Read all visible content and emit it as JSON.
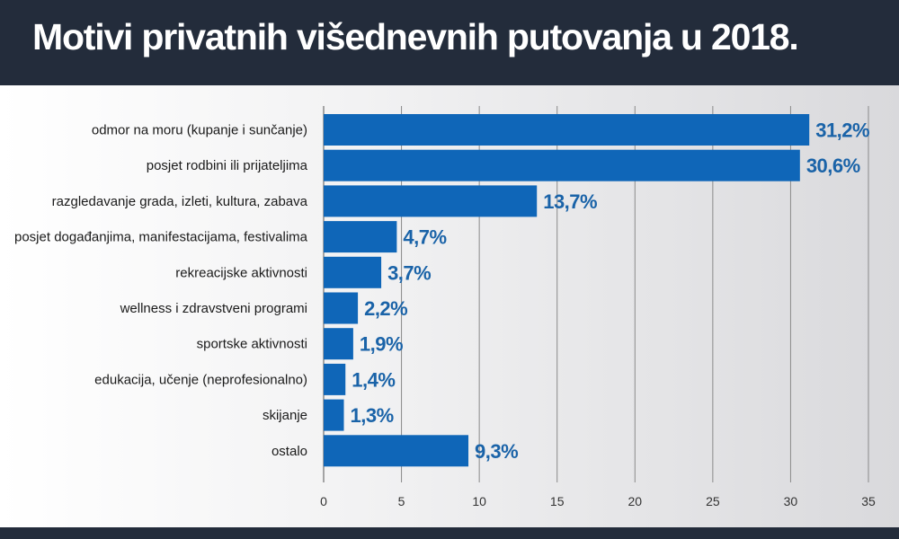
{
  "title": "Motivi privatnih višednevnih putovanja u 2018.",
  "chart_data": {
    "type": "bar",
    "orientation": "horizontal",
    "title": "Motivi privatnih višednevnih putovanja u 2018.",
    "xlabel": "",
    "ylabel": "",
    "xlim": [
      0,
      35
    ],
    "xticks": [
      0,
      5,
      10,
      15,
      20,
      25,
      30,
      35
    ],
    "grid": true,
    "categories": [
      "odmor na moru (kupanje i sunčanje)",
      "posjet rodbini ili prijateljima",
      "razgledavanje grada, izleti, kultura, zabava",
      "posjet događanjima, manifestacijama, festivalima",
      "rekreacijske aktivnosti",
      "wellness i zdravstveni programi",
      "sportske aktivnosti",
      "edukacija, učenje (neprofesionalno)",
      "skijanje",
      "ostalo"
    ],
    "values": [
      31.2,
      30.6,
      13.7,
      4.7,
      3.7,
      2.2,
      1.9,
      1.4,
      1.3,
      9.3
    ],
    "value_labels": [
      "31,2%",
      "30,6%",
      "13,7%",
      "4,7%",
      "3,7%",
      "2,2%",
      "1,9%",
      "1,4%",
      "1,3%",
      "9,3%"
    ],
    "colors": {
      "bar": "#0f66b8",
      "value_label": "#1a63a8",
      "header": "#232c3b"
    }
  }
}
